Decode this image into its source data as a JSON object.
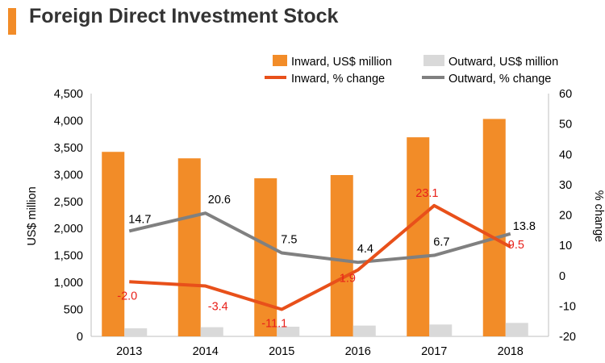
{
  "header": {
    "title": "Foreign Direct Investment Stock"
  },
  "colors": {
    "accent": "#F28C28",
    "inward_bar": "#F28C28",
    "outward_bar": "#D9D9D9",
    "inward_line": "#E8501A",
    "outward_line": "#808080",
    "inward_label": "#E8201A",
    "outward_label": "#000000"
  },
  "chart_data": {
    "type": "bar",
    "title": "Foreign Direct Investment Stock",
    "categories": [
      "2013",
      "2014",
      "2015",
      "2016",
      "2017",
      "2018"
    ],
    "ylabel": "US$ million",
    "y2label": "% change",
    "ylim": [
      0,
      4500
    ],
    "y2lim": [
      -20,
      60
    ],
    "yticks": [
      0,
      500,
      1000,
      1500,
      2000,
      2500,
      3000,
      3500,
      4000,
      4500
    ],
    "ytick_labels": [
      "0",
      "500",
      "1,000",
      "1,500",
      "2,000",
      "2,500",
      "3,000",
      "3,500",
      "4,000",
      "4,500"
    ],
    "y2ticks": [
      -20,
      -10,
      0,
      10,
      20,
      30,
      40,
      50,
      60
    ],
    "y2tick_labels": [
      "-20",
      "-10",
      "0",
      "10",
      "20",
      "30",
      "40",
      "50",
      "60"
    ],
    "legend_position": "top-right",
    "series": [
      {
        "name": "Inward, US$ million",
        "kind": "bar",
        "axis": "left",
        "values": [
          3420,
          3300,
          2930,
          2990,
          3690,
          4030
        ]
      },
      {
        "name": "Outward, US$ million",
        "kind": "bar",
        "axis": "left",
        "values": [
          150,
          170,
          180,
          200,
          220,
          250
        ]
      },
      {
        "name": "Inward, % change",
        "kind": "line",
        "axis": "right",
        "values": [
          -2.0,
          -3.4,
          -11.1,
          1.9,
          23.1,
          9.5
        ],
        "labels": [
          "-2.0",
          "-3.4",
          "-11.1",
          "1.9",
          "23.1",
          "9.5"
        ]
      },
      {
        "name": "Outward, % change",
        "kind": "line",
        "axis": "right",
        "values": [
          14.7,
          20.6,
          7.5,
          4.4,
          6.7,
          13.8
        ],
        "labels": [
          "14.7",
          "20.6",
          "7.5",
          "4.4",
          "6.7",
          "13.8"
        ]
      }
    ]
  }
}
